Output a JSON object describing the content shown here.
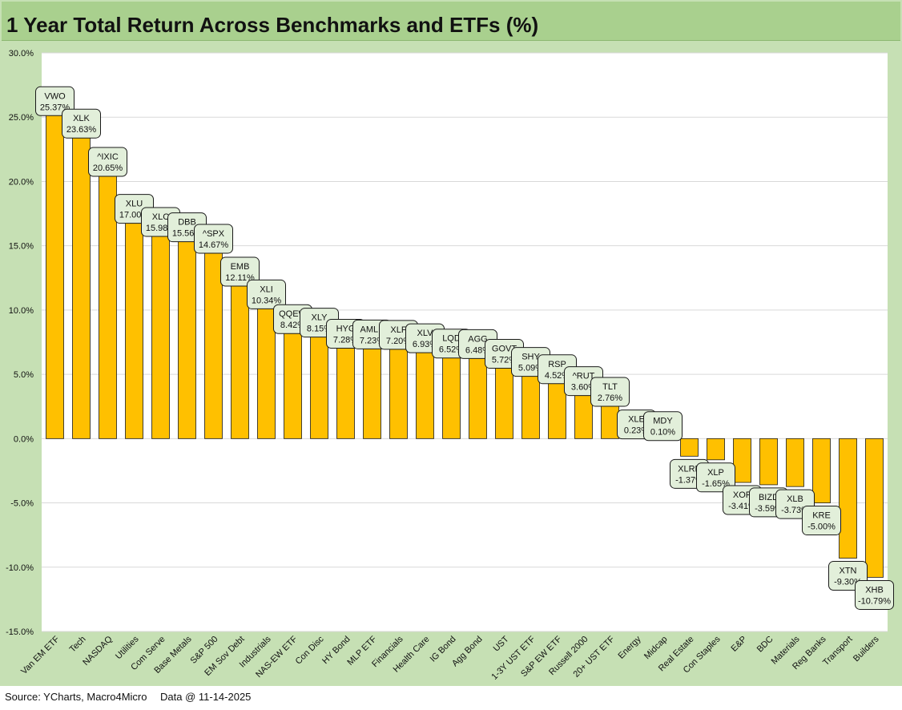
{
  "title": "1 Year Total Return Across Benchmarks and ETFs (%)",
  "footer": {
    "source": "Source: YCharts, Macro4Micro",
    "date": "Data @ 11-14-2025"
  },
  "colors": {
    "bar": "#ffc000",
    "bar_stroke": "#1a1a1a",
    "label_fill": "#e2efda",
    "background": "#c6e0b4",
    "title_bar": "#a9d08e",
    "plot": "#ffffff"
  },
  "chart_data": {
    "type": "bar",
    "title": "1 Year Total Return Across Benchmarks and ETFs (%)",
    "ylim": [
      -15,
      30
    ],
    "yticks": [
      "30.0%",
      "25.0%",
      "20.0%",
      "15.0%",
      "10.0%",
      "5.0%",
      "0.0%",
      "-5.0%",
      "-10.0%",
      "-15.0%"
    ],
    "grid": true,
    "categories": [
      "Van EM ETF",
      "Tech",
      "NASDAQ",
      "Utilities",
      "Com Serve",
      "Base Metals",
      "S&P 500",
      "EM Sov Debt",
      "Industrials",
      "NAS-EW ETF",
      "Con Disc",
      "HY Bond",
      "MLP ETF",
      "Financials",
      "Health Care",
      "IG Bond",
      "Agg Bond",
      "UST",
      "1-3Y UST ETF",
      "S&P EW ETF",
      "Russell 2000",
      "20+ UST ETF",
      "Energy",
      "Midcap",
      "Real Estate",
      "Con Staples",
      "E&P",
      "BDC",
      "Materials",
      "Reg Banks",
      "Transport",
      "Builders"
    ],
    "tickers": [
      "VWO",
      "XLK",
      "^IXIC",
      "XLU",
      "XLC",
      "DBB",
      "^SPX",
      "EMB",
      "XLI",
      "QQEW",
      "XLY",
      "HYG",
      "AMLP",
      "XLF",
      "XLV",
      "LQD",
      "AGG",
      "GOVT",
      "SHY",
      "RSP",
      "^RUT",
      "TLT",
      "XLE",
      "MDY",
      "XLRE",
      "XLP",
      "XOP",
      "BIZD",
      "XLB",
      "KRE",
      "XTN",
      "XHB"
    ],
    "values": [
      25.37,
      23.63,
      20.65,
      17.0,
      15.98,
      15.56,
      14.67,
      12.11,
      10.34,
      8.42,
      8.15,
      7.28,
      7.23,
      7.2,
      6.93,
      6.52,
      6.48,
      5.72,
      5.09,
      4.52,
      3.6,
      2.76,
      0.23,
      0.1,
      -1.37,
      -1.65,
      -3.41,
      -3.59,
      -3.73,
      -5.0,
      -9.3,
      -10.79
    ],
    "value_labels": [
      "25.37%",
      "23.63%",
      "20.65%",
      "17.00%",
      "15.98%",
      "15.56%",
      "14.67%",
      "12.11%",
      "10.34%",
      "8.42%",
      "8.15%",
      "7.28%",
      "7.23%",
      "7.20%",
      "6.93%",
      "6.52%",
      "6.48%",
      "5.72%",
      "5.09%",
      "4.52%",
      "3.60%",
      "2.76%",
      "0.23%",
      "0.10%",
      "-1.37%",
      "-1.65%",
      "-3.41%",
      "-3.59%",
      "-3.73%",
      "-5.00%",
      "-9.30%",
      "-10.79%"
    ]
  }
}
